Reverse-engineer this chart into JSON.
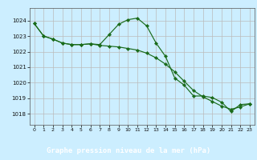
{
  "title": "Graphe pression niveau de la mer (hPa)",
  "background_color": "#cceeff",
  "plot_bg_color": "#cceeff",
  "grid_color": "#bbbbbb",
  "line_color1": "#1a6b1a",
  "line_color2": "#1a6b1a",
  "title_bg": "#336633",
  "title_fg": "#ffffff",
  "xlim": [
    -0.5,
    23.5
  ],
  "ylim": [
    1017.3,
    1024.8
  ],
  "yticks": [
    1018,
    1019,
    1020,
    1021,
    1022,
    1023,
    1024
  ],
  "xticks": [
    0,
    1,
    2,
    3,
    4,
    5,
    6,
    7,
    8,
    9,
    10,
    11,
    12,
    13,
    14,
    15,
    16,
    17,
    18,
    19,
    20,
    21,
    22,
    23
  ],
  "series1_x": [
    0,
    1,
    2,
    3,
    4,
    5,
    6,
    7,
    8,
    9,
    10,
    11,
    12,
    13,
    14,
    15,
    16,
    17,
    18,
    19,
    20,
    21,
    22,
    23
  ],
  "series1_y": [
    1023.8,
    1023.0,
    1022.8,
    1022.55,
    1022.45,
    1022.45,
    1022.5,
    1022.45,
    1023.1,
    1023.75,
    1024.05,
    1024.15,
    1023.65,
    1022.55,
    1021.7,
    1020.3,
    1019.85,
    1019.15,
    1019.15,
    1019.05,
    1018.75,
    1018.15,
    1018.6,
    1018.65
  ],
  "series2_x": [
    0,
    1,
    2,
    3,
    4,
    5,
    6,
    7,
    8,
    9,
    10,
    11,
    12,
    13,
    14,
    15,
    16,
    17,
    18,
    19,
    20,
    21,
    22,
    23
  ],
  "series2_y": [
    1023.8,
    1023.0,
    1022.8,
    1022.55,
    1022.45,
    1022.45,
    1022.5,
    1022.4,
    1022.35,
    1022.3,
    1022.2,
    1022.1,
    1021.9,
    1021.6,
    1021.2,
    1020.7,
    1020.1,
    1019.5,
    1019.1,
    1018.8,
    1018.5,
    1018.3,
    1018.45,
    1018.65
  ]
}
